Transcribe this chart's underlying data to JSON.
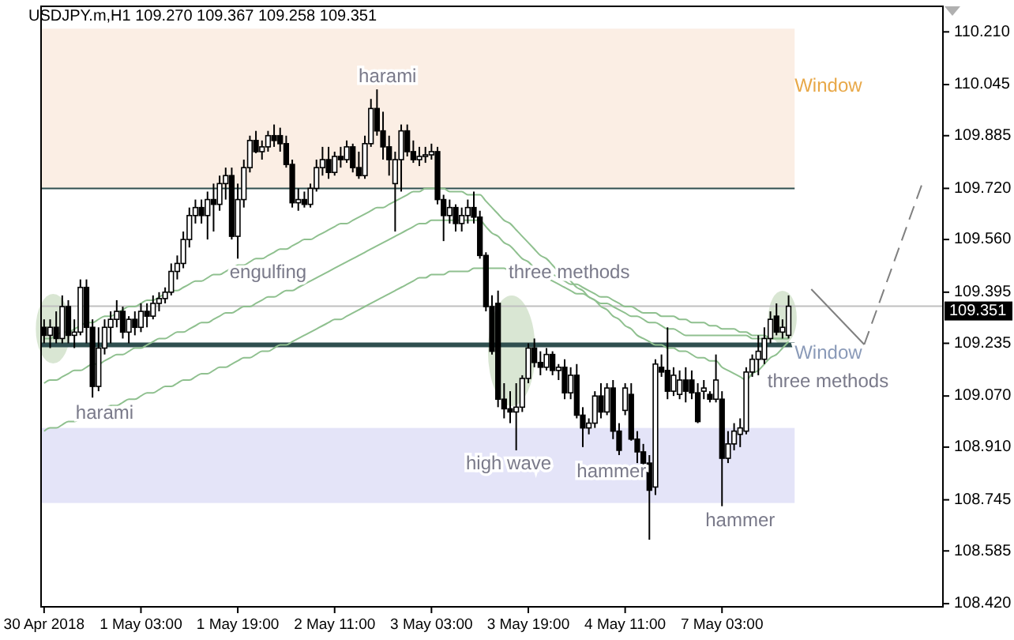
{
  "chart_data": {
    "type": "candlestick",
    "title": "USDJPY.m,H1  109.270 109.367 109.258 109.351",
    "categories": [
      "30 Apr 2018",
      null,
      null,
      null,
      null,
      null,
      null,
      null,
      null,
      null,
      null,
      null,
      null,
      null,
      null,
      null,
      "1 May 03:00",
      null,
      null,
      null,
      null,
      null,
      null,
      null,
      null,
      null,
      null,
      null,
      null,
      null,
      null,
      null,
      "1 May 19:00",
      null,
      null,
      null,
      null,
      null,
      null,
      null,
      null,
      null,
      null,
      null,
      null,
      null,
      null,
      null,
      "2 May 11:00",
      null,
      null,
      null,
      null,
      null,
      null,
      null,
      null,
      null,
      null,
      null,
      null,
      null,
      null,
      null,
      "3 May 03:00",
      null,
      null,
      null,
      null,
      null,
      null,
      null,
      null,
      null,
      null,
      null,
      null,
      null,
      null,
      null,
      "3 May 19:00",
      null,
      null,
      null,
      null,
      null,
      null,
      null,
      null,
      null,
      null,
      null,
      null,
      null,
      null,
      null,
      "4 May 11:00",
      null,
      null,
      null,
      null,
      null,
      null,
      null,
      null,
      null,
      null,
      null,
      null,
      null,
      null,
      null,
      "7 May 03:00",
      null,
      null,
      null,
      null,
      null,
      null,
      null,
      null,
      null,
      null,
      null
    ],
    "ohlc": [
      [
        109.285,
        109.31,
        109.235,
        109.26
      ],
      [
        109.26,
        109.31,
        109.22,
        109.285
      ],
      [
        109.285,
        109.335,
        109.235,
        109.25
      ],
      [
        109.25,
        109.385,
        109.235,
        109.35
      ],
      [
        109.35,
        109.37,
        109.235,
        109.26
      ],
      [
        109.26,
        109.31,
        109.22,
        109.27
      ],
      [
        109.27,
        109.435,
        109.26,
        109.41
      ],
      [
        109.41,
        109.435,
        109.235,
        109.285
      ],
      [
        109.285,
        109.31,
        109.065,
        109.1
      ],
      [
        109.1,
        109.285,
        109.085,
        109.22
      ],
      [
        109.22,
        109.31,
        109.2,
        109.285
      ],
      [
        109.285,
        109.335,
        109.235,
        109.31
      ],
      [
        109.31,
        109.37,
        109.285,
        109.335
      ],
      [
        109.335,
        109.35,
        109.25,
        109.27
      ],
      [
        109.27,
        109.32,
        109.235,
        109.31
      ],
      [
        109.31,
        109.335,
        109.26,
        109.285
      ],
      [
        109.285,
        109.36,
        109.27,
        109.335
      ],
      [
        109.335,
        109.36,
        109.285,
        109.32
      ],
      [
        109.32,
        109.385,
        109.31,
        109.36
      ],
      [
        109.36,
        109.395,
        109.335,
        109.375
      ],
      [
        109.375,
        109.41,
        109.36,
        109.395
      ],
      [
        109.395,
        109.485,
        109.385,
        109.46
      ],
      [
        109.46,
        109.51,
        109.435,
        109.485
      ],
      [
        109.485,
        109.585,
        109.47,
        109.56
      ],
      [
        109.56,
        109.66,
        109.535,
        109.635
      ],
      [
        109.635,
        109.685,
        109.61,
        109.66
      ],
      [
        109.66,
        109.685,
        109.61,
        109.635
      ],
      [
        109.635,
        109.71,
        109.56,
        109.685
      ],
      [
        109.685,
        109.735,
        109.585,
        109.67
      ],
      [
        109.67,
        109.76,
        109.65,
        109.735
      ],
      [
        109.735,
        109.785,
        109.685,
        109.76
      ],
      [
        109.76,
        109.785,
        109.56,
        109.57
      ],
      [
        109.57,
        109.735,
        109.5,
        109.685
      ],
      [
        109.685,
        109.81,
        109.66,
        109.785
      ],
      [
        109.785,
        109.885,
        109.77,
        109.87
      ],
      [
        109.87,
        109.9,
        109.83,
        109.835
      ],
      [
        109.835,
        109.87,
        109.81,
        109.85
      ],
      [
        109.85,
        109.9,
        109.835,
        109.885
      ],
      [
        109.885,
        109.92,
        109.85,
        109.87
      ],
      [
        109.885,
        109.91,
        109.835,
        109.86
      ],
      [
        109.86,
        109.885,
        109.785,
        109.795
      ],
      [
        109.795,
        109.81,
        109.66,
        109.675
      ],
      [
        109.675,
        109.72,
        109.65,
        109.685
      ],
      [
        109.685,
        109.71,
        109.66,
        109.67
      ],
      [
        109.67,
        109.735,
        109.66,
        109.72
      ],
      [
        109.72,
        109.81,
        109.71,
        109.785
      ],
      [
        109.785,
        109.85,
        109.76,
        109.81
      ],
      [
        109.81,
        109.85,
        109.75,
        109.77
      ],
      [
        109.77,
        109.835,
        109.76,
        109.82
      ],
      [
        109.82,
        109.85,
        109.785,
        109.81
      ],
      [
        109.81,
        109.87,
        109.8,
        109.85
      ],
      [
        109.85,
        109.86,
        109.77,
        109.785
      ],
      [
        109.785,
        109.835,
        109.75,
        109.76
      ],
      [
        109.76,
        109.885,
        109.75,
        109.86
      ],
      [
        109.86,
        110.0,
        109.85,
        109.97
      ],
      [
        109.97,
        110.03,
        109.885,
        109.9
      ],
      [
        109.9,
        109.96,
        109.81,
        109.85
      ],
      [
        109.85,
        109.885,
        109.76,
        109.81
      ],
      [
        109.735,
        109.835,
        109.585,
        109.81
      ],
      [
        109.81,
        109.92,
        109.71,
        109.9
      ],
      [
        109.9,
        109.92,
        109.82,
        109.835
      ],
      [
        109.835,
        109.87,
        109.8,
        109.81
      ],
      [
        109.81,
        109.85,
        109.79,
        109.82
      ],
      [
        109.82,
        109.85,
        109.8,
        109.825
      ],
      [
        109.825,
        109.86,
        109.81,
        109.835
      ],
      [
        109.835,
        109.85,
        109.67,
        109.685
      ],
      [
        109.685,
        109.7,
        109.555,
        109.635
      ],
      [
        109.635,
        109.685,
        109.61,
        109.66
      ],
      [
        109.66,
        109.67,
        109.585,
        109.61
      ],
      [
        109.61,
        109.66,
        109.585,
        109.635
      ],
      [
        109.635,
        109.685,
        109.61,
        109.66
      ],
      [
        109.66,
        109.71,
        109.61,
        109.63
      ],
      [
        109.63,
        109.65,
        109.5,
        109.51
      ],
      [
        109.51,
        109.52,
        109.335,
        109.35
      ],
      [
        109.35,
        109.385,
        109.2,
        109.21
      ],
      [
        109.36,
        109.4,
        109.035,
        109.06
      ],
      [
        109.06,
        109.11,
        109.0,
        109.03
      ],
      [
        109.03,
        109.085,
        108.985,
        109.02
      ],
      [
        109.02,
        109.11,
        108.9,
        109.035
      ],
      [
        109.035,
        109.135,
        109.02,
        109.125
      ],
      [
        109.125,
        109.235,
        109.11,
        109.22
      ],
      [
        109.22,
        109.25,
        109.16,
        109.175
      ],
      [
        109.175,
        109.21,
        109.135,
        109.16
      ],
      [
        109.16,
        109.22,
        109.15,
        109.2
      ],
      [
        109.2,
        109.21,
        109.135,
        109.15
      ],
      [
        109.15,
        109.17,
        109.12,
        109.16
      ],
      [
        109.16,
        109.185,
        109.06,
        109.08
      ],
      [
        109.08,
        109.16,
        109.06,
        109.135
      ],
      [
        109.135,
        109.17,
        109.0,
        109.01
      ],
      [
        109.01,
        109.035,
        108.91,
        108.97
      ],
      [
        108.97,
        109.0,
        108.95,
        108.985
      ],
      [
        108.985,
        109.085,
        108.97,
        109.07
      ],
      [
        109.07,
        109.11,
        109.0,
        109.02
      ],
      [
        109.02,
        109.11,
        109.01,
        109.095
      ],
      [
        109.095,
        109.12,
        108.935,
        108.96
      ],
      [
        108.96,
        108.985,
        108.885,
        108.9
      ],
      [
        109.025,
        109.11,
        109.01,
        109.095
      ],
      [
        109.075,
        109.11,
        108.93,
        108.935
      ],
      [
        108.935,
        108.96,
        108.86,
        108.895
      ],
      [
        108.895,
        108.92,
        108.81,
        108.86
      ],
      [
        108.86,
        108.885,
        108.62,
        108.775
      ],
      [
        108.785,
        109.185,
        108.76,
        109.17
      ],
      [
        109.16,
        109.2,
        109.13,
        109.145
      ],
      [
        109.15,
        109.285,
        109.06,
        109.085
      ],
      [
        109.085,
        109.16,
        109.07,
        109.135
      ],
      [
        109.075,
        109.15,
        109.06,
        109.12
      ],
      [
        109.12,
        109.16,
        109.05,
        109.085
      ],
      [
        109.12,
        109.15,
        109.06,
        109.08
      ],
      [
        109.08,
        109.11,
        108.985,
        108.99
      ],
      [
        109.085,
        109.12,
        109.06,
        109.095
      ],
      [
        109.075,
        109.085,
        109.05,
        109.06
      ],
      [
        109.06,
        109.2,
        109.05,
        109.12
      ],
      [
        109.06,
        109.085,
        108.725,
        108.875
      ],
      [
        108.875,
        108.96,
        108.86,
        108.92
      ],
      [
        108.92,
        108.985,
        108.9,
        108.96
      ],
      [
        108.95,
        109.0,
        108.91,
        108.97
      ],
      [
        108.96,
        109.16,
        108.95,
        109.145
      ],
      [
        109.145,
        109.2,
        109.13,
        109.185
      ],
      [
        109.185,
        109.26,
        109.135,
        109.21
      ],
      [
        109.185,
        109.285,
        109.17,
        109.25
      ],
      [
        109.25,
        109.335,
        109.235,
        109.31
      ],
      [
        109.32,
        109.36,
        109.26,
        109.27
      ],
      [
        109.27,
        109.31,
        109.25,
        109.285
      ],
      [
        109.26,
        109.385,
        109.25,
        109.351
      ]
    ],
    "series": [
      {
        "type": "line",
        "color": "#8fc08f",
        "values": [
          109.25,
          109.25,
          109.26,
          109.27,
          109.27,
          109.28,
          109.29,
          109.3,
          109.3,
          109.31,
          109.32,
          109.32,
          109.33,
          109.34,
          109.35,
          109.35,
          109.36,
          109.37,
          109.37,
          109.38,
          109.39,
          109.4,
          109.4,
          109.41,
          109.42,
          109.43,
          109.43,
          109.44,
          109.45,
          109.45,
          109.46,
          109.47,
          109.48,
          109.48,
          109.49,
          109.5,
          109.5,
          109.51,
          109.52,
          109.53,
          109.53,
          109.54,
          109.55,
          109.56,
          109.56,
          109.57,
          109.58,
          109.59,
          109.6,
          109.61,
          109.61,
          109.62,
          109.63,
          109.64,
          109.65,
          109.66,
          109.66,
          109.67,
          109.68,
          109.69,
          109.7,
          109.71,
          109.71,
          109.72,
          109.72,
          109.72,
          109.72,
          109.71,
          109.71,
          109.71,
          109.7,
          109.7,
          109.7,
          109.68,
          109.66,
          109.64,
          109.62,
          109.61,
          109.59,
          109.57,
          109.55,
          109.53,
          109.51,
          109.5,
          109.48,
          109.46,
          109.45,
          109.43,
          109.41,
          109.4,
          109.38,
          109.37,
          109.35,
          109.34,
          109.32,
          109.31,
          109.29,
          109.28,
          109.26,
          109.25,
          109.24,
          109.23,
          109.23,
          109.22,
          109.22,
          109.21,
          109.21,
          109.2,
          109.19,
          109.19,
          109.18,
          109.18,
          109.16,
          109.15,
          109.14,
          109.13,
          109.12,
          109.14,
          109.15,
          109.17,
          109.19,
          109.2,
          109.22,
          109.24
        ]
      },
      {
        "type": "line",
        "color": "#8fc08f",
        "values": [
          109.11,
          109.12,
          109.12,
          109.13,
          109.14,
          109.15,
          109.15,
          109.16,
          109.17,
          109.17,
          109.18,
          109.19,
          109.2,
          109.2,
          109.21,
          109.22,
          109.22,
          109.23,
          109.24,
          109.25,
          109.25,
          109.26,
          109.27,
          109.27,
          109.28,
          109.29,
          109.3,
          109.3,
          109.31,
          109.32,
          109.33,
          109.33,
          109.34,
          109.35,
          109.35,
          109.36,
          109.37,
          109.38,
          109.38,
          109.39,
          109.4,
          109.4,
          109.41,
          109.42,
          109.43,
          109.44,
          109.45,
          109.46,
          109.47,
          109.48,
          109.49,
          109.5,
          109.51,
          109.52,
          109.53,
          109.54,
          109.55,
          109.56,
          109.57,
          109.58,
          109.59,
          109.6,
          109.61,
          109.61,
          109.62,
          109.62,
          109.62,
          109.62,
          109.62,
          109.62,
          109.62,
          109.62,
          109.62,
          109.6,
          109.58,
          109.57,
          109.55,
          109.54,
          109.52,
          109.5,
          109.49,
          109.47,
          109.45,
          109.44,
          109.43,
          109.42,
          109.41,
          109.4,
          109.39,
          109.39,
          109.38,
          109.37,
          109.36,
          109.36,
          109.35,
          109.34,
          109.33,
          109.32,
          109.32,
          109.31,
          109.3,
          109.3,
          109.29,
          109.28,
          109.28,
          109.27,
          109.26,
          109.26,
          109.26,
          109.26,
          109.26,
          109.26,
          109.26,
          109.26,
          109.26,
          109.26,
          109.26,
          109.25,
          109.25,
          109.25,
          109.25,
          109.25,
          109.25,
          109.25
        ]
      },
      {
        "type": "line",
        "color": "#8fc08f",
        "values": [
          108.96,
          108.97,
          108.97,
          108.98,
          108.99,
          108.99,
          109.0,
          109.01,
          109.01,
          109.02,
          109.03,
          109.04,
          109.04,
          109.05,
          109.06,
          109.06,
          109.07,
          109.08,
          109.08,
          109.09,
          109.1,
          109.1,
          109.11,
          109.12,
          109.12,
          109.13,
          109.14,
          109.14,
          109.15,
          109.16,
          109.16,
          109.17,
          109.18,
          109.19,
          109.19,
          109.2,
          109.21,
          109.21,
          109.22,
          109.23,
          109.23,
          109.24,
          109.25,
          109.26,
          109.27,
          109.28,
          109.29,
          109.3,
          109.31,
          109.31,
          109.32,
          109.33,
          109.34,
          109.35,
          109.36,
          109.37,
          109.38,
          109.39,
          109.4,
          109.41,
          109.42,
          109.43,
          109.44,
          109.44,
          109.45,
          109.45,
          109.45,
          109.46,
          109.46,
          109.46,
          109.46,
          109.47,
          109.47,
          109.47,
          109.47,
          109.47,
          109.47,
          109.46,
          109.46,
          109.46,
          109.46,
          109.46,
          109.45,
          109.45,
          109.45,
          109.44,
          109.43,
          109.42,
          109.42,
          109.41,
          109.4,
          109.39,
          109.38,
          109.38,
          109.37,
          109.36,
          109.35,
          109.35,
          109.34,
          109.33,
          109.33,
          109.33,
          109.32,
          109.32,
          109.32,
          109.31,
          109.31,
          109.3,
          109.3,
          109.3,
          109.29,
          109.29,
          109.28,
          109.28,
          109.28,
          109.27,
          109.27,
          109.26,
          109.26,
          109.26,
          109.25,
          109.25,
          109.25,
          109.25
        ]
      }
    ],
    "bands": [
      {
        "axis": "y",
        "from": 109.72,
        "to": 110.22,
        "color": "#fbeee4",
        "label": "Window"
      },
      {
        "axis": "y",
        "from": 108.735,
        "to": 108.97,
        "color": "#e4e4f8"
      }
    ],
    "ref_lines": [
      {
        "axis": "y",
        "value": 109.72,
        "color": "#2f4f4f"
      },
      {
        "axis": "y",
        "value": 109.23,
        "color": "#2f4f4f"
      },
      {
        "axis": "y",
        "value": 109.351,
        "color": "#c0c0c0",
        "label": "109.351"
      }
    ],
    "annotations": [
      "harami",
      "engulfing",
      "harami",
      "three methods",
      "high wave",
      "hammer",
      "hammer",
      "Window",
      "three methods"
    ],
    "ylim": [
      108.41,
      110.29
    ],
    "yticks": [
      {
        "value": 110.21,
        "label": "110.210"
      },
      110.045,
      109.885,
      {
        "value": 109.72,
        "label": "109.720"
      },
      {
        "value": 109.56,
        "label": "109.560"
      },
      109.395,
      109.235,
      {
        "value": 109.07,
        "label": "109.070"
      },
      {
        "value": 108.91,
        "label": "108.910"
      },
      108.745,
      108.585,
      {
        "value": 108.42,
        "label": "108.420"
      }
    ]
  }
}
